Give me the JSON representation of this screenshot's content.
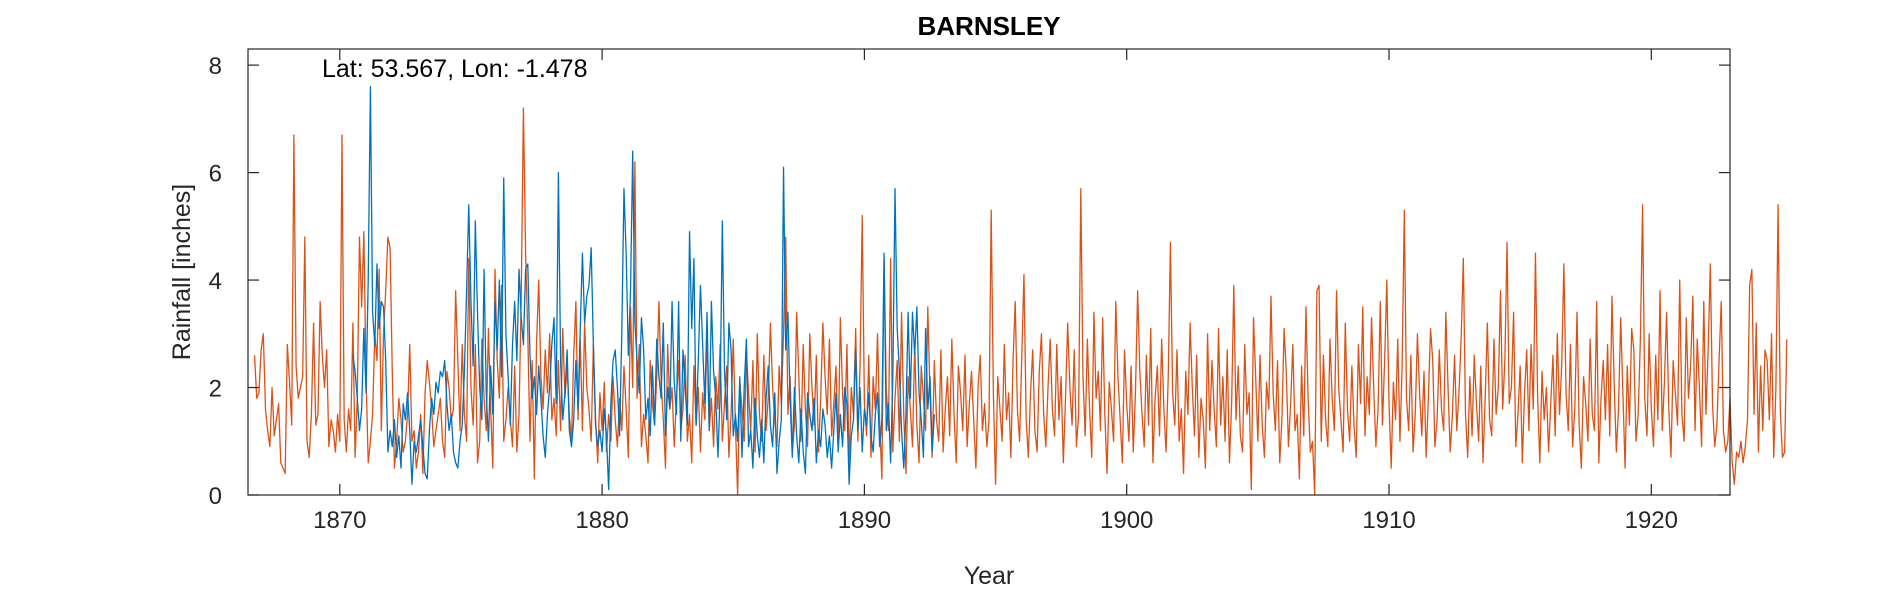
{
  "chart_data": {
    "type": "line",
    "title": "BARNSLEY",
    "xlabel": "Year",
    "ylabel": "Rainfall [inches]",
    "annotation": "Lat: 53.567, Lon: -1.478",
    "xlim": [
      1866.5,
      1923
    ],
    "ylim": [
      0,
      8.3
    ],
    "xticks": [
      1870,
      1880,
      1890,
      1900,
      1910,
      1920
    ],
    "xtick_labels": [
      "1870",
      "1880",
      "1890",
      "1900",
      "1910",
      "1920"
    ],
    "yticks": [
      0,
      2,
      4,
      6,
      8
    ],
    "ytick_labels": [
      "0",
      "2",
      "4",
      "6",
      "8"
    ],
    "grid": false,
    "series": [
      {
        "color": "#D95319",
        "x_start": 1866.75,
        "x_step": 0.0833333,
        "values": [
          2.6,
          1.8,
          1.9,
          2.7,
          3.0,
          1.6,
          1.2,
          0.9,
          2.0,
          1.1,
          1.4,
          1.7,
          0.6,
          0.5,
          0.4,
          2.8,
          2.1,
          1.3,
          6.7,
          2.4,
          1.8,
          2.0,
          2.2,
          4.8,
          1.0,
          0.7,
          1.5,
          3.2,
          1.3,
          1.5,
          3.6,
          2.6,
          2.0,
          2.7,
          0.9,
          1.4,
          1.2,
          0.8,
          1.5,
          1.0,
          6.7,
          1.4,
          0.8,
          1.6,
          1.2,
          3.2,
          0.7,
          1.8,
          4.8,
          3.5,
          4.9,
          2.2,
          0.6,
          1.0,
          1.5,
          3.0,
          2.5,
          4.2,
          1.2,
          3.0,
          3.8,
          4.8,
          4.6,
          2.3,
          0.5,
          1.0,
          1.8,
          1.4,
          0.8,
          1.0,
          1.5,
          2.8,
          1.0,
          1.2,
          0.5,
          0.8,
          1.5,
          0.4,
          1.9,
          2.5,
          2.1,
          1.6,
          0.9,
          1.2,
          1.5,
          1.8,
          1.0,
          0.7,
          2.3,
          2.0,
          1.4,
          1.6,
          3.8,
          2.5,
          1.2,
          2.8,
          1.5,
          1.0,
          4.4,
          2.0,
          1.3,
          2.8,
          0.6,
          1.0,
          2.9,
          1.8,
          1.2,
          3.1,
          1.6,
          0.5,
          4.2,
          2.5,
          1.8,
          3.9,
          1.0,
          1.4,
          2.0,
          1.4,
          0.9,
          2.4,
          0.8,
          1.5,
          3.7,
          7.2,
          4.5,
          3.0,
          1.0,
          2.5,
          0.3,
          2.8,
          4.0,
          2.2,
          1.6,
          2.7,
          1.9,
          3.0,
          1.4,
          1.8,
          1.1,
          2.5,
          1.2,
          3.1,
          1.8,
          2.4,
          1.5,
          1.0,
          2.6,
          3.6,
          1.4,
          2.9,
          1.2,
          3.2,
          2.0,
          1.6,
          1.0,
          2.8,
          1.4,
          0.6,
          1.9,
          1.2,
          2.1,
          0.8,
          1.5,
          1.0,
          2.2,
          1.4,
          0.9,
          1.8,
          1.2,
          2.4,
          1.6,
          0.7,
          3.5,
          2.0,
          6.2,
          1.8,
          2.8,
          0.9,
          1.5,
          1.1,
          0.6,
          2.5,
          1.7,
          1.3,
          2.2,
          3.6,
          2.1,
          1.4,
          0.5,
          2.8,
          1.6,
          2.0,
          0.9,
          1.8,
          2.5,
          1.2,
          1.6,
          2.6,
          1.0,
          1.5,
          0.6,
          2.4,
          1.3,
          2.0,
          0.8,
          1.9,
          1.4,
          3.0,
          1.2,
          1.8,
          0.9,
          2.2,
          1.6,
          2.8,
          1.0,
          1.7,
          2.4,
          0.7,
          1.5,
          2.9,
          1.3,
          0.0,
          2.1,
          1.6,
          1.0,
          2.7,
          1.9,
          1.2,
          2.5,
          0.8,
          3.0,
          1.5,
          1.0,
          2.6,
          1.2,
          1.8,
          3.2,
          2.0,
          1.4,
          0.9,
          2.4,
          1.7,
          3.0,
          4.8,
          1.5,
          2.2,
          0.8,
          1.3,
          3.4,
          2.2,
          1.0,
          2.8,
          1.6,
          0.9,
          3.0,
          2.0,
          1.3,
          2.6,
          0.8,
          1.8,
          3.2,
          2.2,
          1.5,
          2.9,
          1.1,
          1.7,
          2.4,
          0.9,
          3.3,
          1.9,
          1.2,
          2.8,
          0.5,
          2.0,
          1.5,
          3.1,
          1.0,
          2.4,
          5.2,
          1.7,
          1.1,
          2.6,
          0.7,
          2.2,
          1.6,
          3.0,
          1.3,
          0.3,
          4.4,
          2.0,
          1.2,
          4.4,
          0.8,
          1.8,
          2.5,
          1.0,
          3.4,
          1.5,
          0.4,
          2.2,
          1.6,
          0.9,
          2.8,
          1.3,
          0.6,
          2.4,
          1.8,
          1.2,
          3.5,
          1.9,
          0.7,
          2.5,
          1.4,
          1.0,
          2.7,
          0.8,
          1.6,
          2.2,
          1.1,
          2.9,
          1.5,
          0.6,
          2.4,
          1.9,
          1.2,
          2.6,
          0.9,
          1.7,
          2.3,
          1.4,
          0.5,
          2.0,
          2.6,
          1.2,
          1.7,
          0.9,
          1.4,
          5.3,
          1.9,
          0.2,
          2.2,
          1.6,
          1.0,
          2.8,
          1.4,
          1.9,
          0.7,
          2.5,
          3.6,
          1.6,
          1.0,
          2.6,
          4.1,
          1.4,
          0.7,
          1.9,
          2.7,
          1.2,
          0.8,
          2.3,
          3.0,
          1.5,
          0.9,
          2.0,
          2.9,
          1.6,
          1.1,
          2.8,
          1.4,
          2.2,
          0.6,
          1.8,
          3.2,
          2.0,
          1.3,
          2.7,
          0.9,
          1.5,
          5.7,
          2.2,
          1.1,
          2.9,
          1.6,
          0.7,
          3.4,
          1.8,
          2.3,
          1.2,
          3.3,
          1.5,
          0.4,
          2.1,
          1.6,
          1.0,
          3.6,
          2.2,
          1.4,
          0.6,
          2.7,
          1.7,
          1.0,
          2.4,
          0.8,
          1.9,
          3.8,
          2.3,
          1.5,
          0.9,
          2.6,
          1.3,
          3.1,
          0.6,
          1.8,
          2.4,
          1.1,
          2.9,
          1.6,
          0.8,
          2.2,
          4.7,
          1.9,
          1.3,
          2.7,
          1.0,
          1.6,
          0.4,
          2.3,
          1.5,
          3.2,
          2.0,
          1.1,
          2.6,
          0.7,
          1.8,
          1.4,
          0.5,
          3.0,
          1.2,
          2.5,
          1.6,
          0.9,
          3.1,
          1.3,
          2.2,
          1.0,
          2.7,
          0.6,
          1.7,
          3.9,
          1.4,
          2.4,
          1.1,
          0.8,
          2.8,
          1.5,
          1.9,
          0.1,
          3.3,
          2.2,
          1.0,
          2.6,
          1.3,
          0.7,
          2.1,
          1.6,
          3.7,
          1.9,
          1.2,
          2.5,
          0.6,
          1.4,
          3.1,
          2.3,
          0.9,
          1.7,
          2.8,
          1.2,
          1.5,
          0.3,
          2.4,
          1.1,
          3.5,
          1.8,
          0.8,
          1.0,
          0.0,
          3.8,
          3.9,
          1.0,
          2.6,
          1.4,
          0.9,
          2.9,
          1.8,
          1.2,
          3.8,
          2.0,
          1.4,
          0.8,
          3.2,
          1.6,
          1.0,
          2.4,
          1.3,
          0.7,
          2.8,
          1.7,
          3.5,
          1.1,
          2.2,
          1.5,
          3.3,
          2.0,
          0.9,
          1.6,
          3.6,
          1.3,
          2.5,
          4.0,
          1.7,
          0.5,
          2.1,
          1.4,
          2.9,
          1.0,
          2.4,
          5.3,
          1.8,
          1.2,
          2.6,
          0.8,
          1.5,
          3.0,
          1.9,
          1.1,
          2.3,
          0.7,
          1.8,
          3.1,
          2.5,
          0.9,
          1.4,
          2.7,
          1.6,
          1.2,
          3.4,
          2.0,
          0.8,
          1.5,
          2.6,
          1.2,
          1.9,
          2.9,
          4.4,
          1.5,
          0.7,
          2.2,
          1.1,
          2.6,
          1.7,
          1.0,
          2.4,
          0.6,
          1.8,
          3.2,
          1.4,
          1.1,
          2.9,
          1.5,
          2.0,
          3.8,
          1.6,
          2.5,
          4.7,
          1.7,
          2.0,
          3.4,
          0.9,
          1.5,
          2.4,
          0.6,
          1.9,
          2.7,
          1.2,
          2.8,
          1.6,
          4.5,
          1.8,
          0.6,
          2.3,
          1.4,
          2.0,
          0.8,
          1.7,
          2.6,
          1.1,
          3.0,
          1.5,
          2.4,
          4.3,
          1.9,
          1.2,
          2.8,
          0.9,
          1.6,
          3.4,
          1.3,
          0.5,
          2.2,
          1.7,
          1.0,
          2.9,
          1.5,
          1.2,
          3.6,
          0.6,
          1.8,
          2.5,
          1.4,
          2.8,
          1.1,
          3.7,
          2.1,
          0.8,
          1.6,
          3.3,
          1.9,
          0.5,
          2.4,
          1.3,
          3.1,
          2.7,
          1.0,
          1.5,
          2.9,
          5.4,
          1.8,
          1.1,
          3.0,
          1.6,
          0.9,
          2.6,
          1.4,
          3.8,
          1.2,
          2.1,
          3.4,
          1.6,
          0.7,
          2.5,
          1.9,
          1.3,
          4.0,
          1.5,
          1.0,
          3.3,
          1.8,
          2.4,
          3.7,
          1.2,
          2.9,
          2.0,
          0.9,
          3.6,
          1.5,
          2.7,
          4.3,
          1.7,
          0.9,
          1.3,
          2.5,
          3.6,
          1.2,
          0.8,
          1.0,
          1.8,
          0.6,
          0.2,
          0.8,
          0.7,
          1.0,
          0.6,
          0.9,
          1.4,
          3.9,
          4.2,
          1.5,
          3.2,
          0.8,
          2.4,
          1.2,
          2.7,
          2.5,
          1.4,
          3.0,
          0.7,
          2.0,
          5.4,
          1.6,
          0.7,
          0.8,
          2.9
        ]
      },
      {
        "color": "#0072BD",
        "x_start": 1870.5,
        "x_step": 0.0833333,
        "values": [
          2.6,
          2.3,
          1.8,
          1.2,
          1.6,
          3.1,
          1.9,
          4.0,
          7.6,
          3.4,
          2.8,
          4.3,
          3.1,
          3.6,
          3.5,
          2.5,
          0.8,
          1.2,
          0.9,
          1.4,
          0.7,
          1.1,
          0.5,
          1.7,
          1.4,
          1.9,
          1.2,
          0.2,
          1.0,
          0.8,
          1.1,
          1.4,
          0.9,
          0.4,
          0.3,
          1.2,
          1.8,
          1.5,
          2.1,
          1.9,
          2.3,
          2.2,
          2.5,
          1.7,
          1.2,
          1.5,
          0.8,
          0.6,
          0.5,
          1.0,
          1.3,
          2.3,
          3.8,
          5.4,
          3.6,
          2.4,
          5.1,
          3.4,
          2.0,
          1.4,
          4.2,
          1.9,
          1.0,
          2.4,
          1.5,
          3.6,
          2.7,
          4.0,
          2.2,
          5.9,
          3.0,
          2.2,
          1.3,
          2.8,
          3.6,
          2.5,
          4.2,
          3.3,
          2.8,
          4.2,
          4.3,
          2.6,
          1.8,
          2.2,
          1.5,
          2.4,
          1.8,
          1.1,
          0.7,
          1.5,
          2.0,
          2.8,
          3.3,
          1.7,
          6.0,
          2.5,
          1.4,
          1.9,
          2.7,
          1.2,
          0.9,
          1.4,
          2.5,
          1.6,
          3.1,
          4.5,
          3.2,
          3.7,
          3.9,
          4.6,
          2.8,
          1.3,
          0.9,
          1.2,
          0.8,
          1.6,
          1.1,
          0.1,
          1.7,
          2.5,
          2.7,
          2.0,
          1.1,
          3.0,
          5.7,
          4.5,
          2.6,
          3.8,
          6.4,
          3.2,
          2.5,
          1.9,
          3.3,
          2.7,
          1.4,
          1.8,
          1.1,
          2.4,
          1.3,
          2.9,
          2.2,
          1.8,
          3.2,
          1.1,
          2.0,
          1.6,
          3.6,
          2.1,
          1.5,
          3.6,
          1.0,
          2.7,
          2.0,
          1.3,
          4.9,
          3.1,
          4.4,
          1.3,
          2.5,
          3.9,
          2.8,
          1.7,
          3.4,
          1.2,
          3.6,
          2.3,
          1.8,
          0.7,
          1.9,
          5.1,
          2.3,
          1.4,
          3.2,
          2.7,
          1.1,
          1.5,
          1.0,
          2.2,
          0.7,
          2.0,
          2.9,
          0.9,
          1.2,
          0.5,
          1.8,
          1.1,
          0.7,
          1.4,
          0.6,
          1.8,
          2.4,
          1.3,
          0.9,
          1.9,
          0.4,
          1.0,
          1.4,
          6.1,
          2.7,
          3.4,
          1.8,
          0.7,
          2.0,
          1.1,
          0.6,
          1.6,
          0.8,
          0.4,
          1.9,
          1.5,
          1.2,
          1.8,
          0.6,
          1.2,
          0.9,
          1.6,
          1.3,
          0.7,
          1.1,
          0.5,
          1.2,
          1.9,
          0.8,
          1.5,
          0.9,
          2.0,
          1.7,
          0.2,
          1.1,
          1.4,
          2.7,
          1.2,
          2.0,
          0.8,
          1.6,
          1.3,
          1.9,
          1.1,
          0.8,
          1.5,
          1.9,
          0.9,
          1.4,
          4.5,
          1.2,
          1.7,
          0.6,
          2.2,
          5.7,
          3.1,
          2.3,
          1.2,
          0.5,
          1.5,
          3.4,
          1.8,
          3.4,
          2.6,
          3.5,
          1.9,
          1.4,
          0.7,
          3.1,
          1.6,
          2.2,
          0.8,
          1.5
        ]
      }
    ]
  }
}
